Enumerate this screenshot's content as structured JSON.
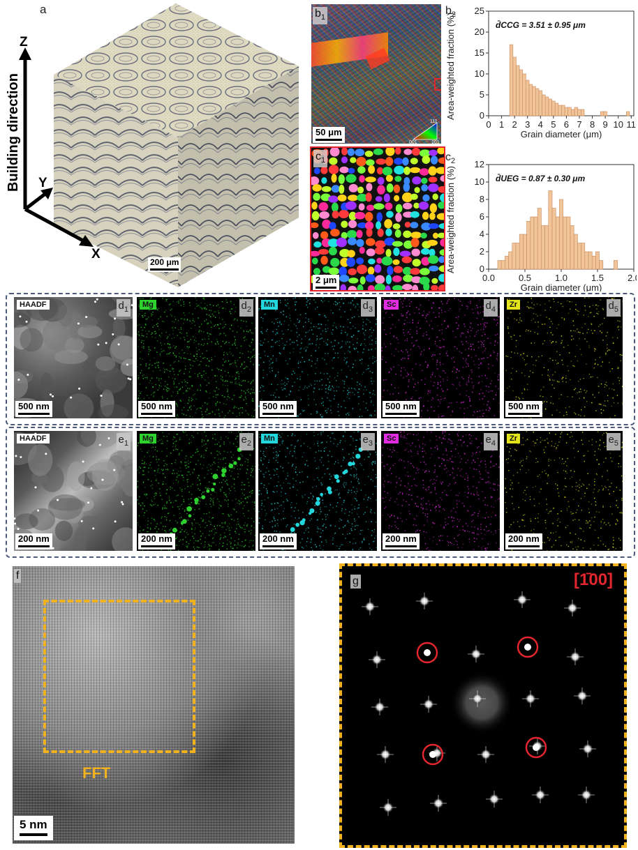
{
  "panel_a": {
    "label": "a",
    "axis_z": "Z",
    "axis_y": "Y",
    "axis_x": "X",
    "building_direction": "Building direction",
    "scale_bar": "200 μm"
  },
  "panel_b1": {
    "label": "b",
    "label_sub": "1",
    "scale_bar": "50 μm",
    "ipf_labels": [
      "111",
      "001",
      "101"
    ]
  },
  "panel_c1": {
    "label": "c",
    "label_sub": "1",
    "scale_bar": "2 μm"
  },
  "panel_b2": {
    "label": "b",
    "label_sub": "2",
    "annotation": "d̄CCG = 3.51 ± 0.95 μm"
  },
  "panel_c2": {
    "label": "c",
    "label_sub": "2",
    "annotation": "d̄UEG = 0.87 ± 0.30 μm"
  },
  "chart_data": [
    {
      "type": "bar",
      "id": "b2",
      "ylabel": "Area-weighted fraction (%)",
      "xlabel": "Grain diameter (μm)",
      "xlim": [
        0,
        11.2
      ],
      "ylim": [
        0,
        25
      ],
      "xticks": [
        0,
        1,
        2,
        3,
        4,
        5,
        6,
        7,
        8,
        9,
        10,
        11
      ],
      "yticks": [
        0,
        5,
        10,
        15,
        20,
        25
      ],
      "bin_width": 0.25,
      "x": [
        1.75,
        2.0,
        2.25,
        2.5,
        2.75,
        3.0,
        3.25,
        3.5,
        3.75,
        4.0,
        4.25,
        4.5,
        4.75,
        5.0,
        5.25,
        5.5,
        5.75,
        6.0,
        6.25,
        6.5,
        6.75,
        7.0,
        7.25,
        8.75,
        9.0,
        10.75
      ],
      "values": [
        17,
        14,
        12,
        11,
        10,
        8.5,
        7.5,
        7,
        6.5,
        6,
        5,
        4.5,
        4,
        3.5,
        3,
        2.5,
        2.5,
        2,
        2,
        1.5,
        2,
        1.5,
        1.5,
        1,
        1,
        1
      ]
    },
    {
      "type": "bar",
      "id": "c2",
      "ylabel": "Area-weighted fraction (%)",
      "xlabel": "Grain diameter (μm)",
      "xlim": [
        0,
        2.0
      ],
      "ylim": [
        0,
        12
      ],
      "xticks": [
        "0.0",
        "0.5",
        "1.0",
        "1.5",
        "2.0"
      ],
      "yticks": [
        0,
        2,
        4,
        6,
        8,
        10,
        12
      ],
      "bin_width": 0.05,
      "x": [
        0.15,
        0.2,
        0.25,
        0.3,
        0.35,
        0.4,
        0.45,
        0.5,
        0.55,
        0.6,
        0.65,
        0.7,
        0.75,
        0.8,
        0.85,
        0.9,
        0.95,
        1.0,
        1.05,
        1.1,
        1.15,
        1.2,
        1.25,
        1.3,
        1.35,
        1.4,
        1.45,
        1.5,
        1.55,
        1.75
      ],
      "values": [
        1,
        1,
        1.5,
        2,
        3,
        3,
        4,
        4,
        5.5,
        6,
        6,
        7,
        5,
        5,
        9,
        7,
        6,
        8,
        6,
        6,
        5,
        4,
        3,
        3,
        2,
        2,
        1.5,
        2,
        1,
        1
      ]
    }
  ],
  "row_d": {
    "panels": [
      {
        "element": "HAADF",
        "tag": "d",
        "sub": "1",
        "scale_bar": "500 nm",
        "color": "#ffffff"
      },
      {
        "element": "Mg",
        "tag": "d",
        "sub": "2",
        "scale_bar": "500 nm",
        "color": "#2fd12f"
      },
      {
        "element": "Mn",
        "tag": "d",
        "sub": "3",
        "scale_bar": "500 nm",
        "color": "#22d6dc"
      },
      {
        "element": "Sc",
        "tag": "d",
        "sub": "4",
        "scale_bar": "500 nm",
        "color": "#e22ce2"
      },
      {
        "element": "Zr",
        "tag": "d",
        "sub": "5",
        "scale_bar": "500 nm",
        "color": "#e4e41c"
      }
    ]
  },
  "row_e": {
    "panels": [
      {
        "element": "HAADF",
        "tag": "e",
        "sub": "1",
        "scale_bar": "200 nm",
        "color": "#ffffff"
      },
      {
        "element": "Mg",
        "tag": "e",
        "sub": "2",
        "scale_bar": "200 nm",
        "color": "#2fd12f"
      },
      {
        "element": "Mn",
        "tag": "e",
        "sub": "3",
        "scale_bar": "200 nm",
        "color": "#22d6dc"
      },
      {
        "element": "Sc",
        "tag": "e",
        "sub": "4",
        "scale_bar": "200 nm",
        "color": "#e22ce2"
      },
      {
        "element": "Zr",
        "tag": "e",
        "sub": "5",
        "scale_bar": "200 nm",
        "color": "#e4e41c"
      }
    ]
  },
  "panel_f": {
    "label": "f",
    "fft_label": "FFT",
    "scale_bar": "5 nm"
  },
  "panel_g": {
    "label": "g",
    "zone_axis": "[1̄00]"
  },
  "colors": {
    "fft_box": "#f0b21e",
    "red": "#e3262d",
    "dash_frame": "#4d5a7a",
    "bar_fill": "#f2c49a",
    "bar_edge": "#c58a5a"
  }
}
